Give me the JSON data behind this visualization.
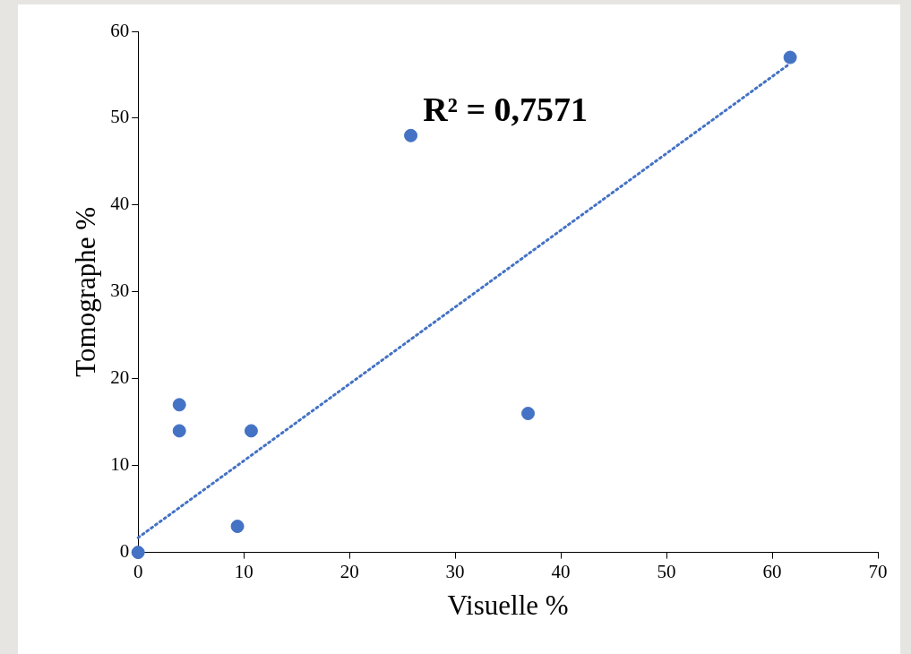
{
  "chart_data": {
    "type": "scatter",
    "xlabel": "Visuelle %",
    "ylabel": "Tomographe %",
    "x": [
      0,
      3.9,
      3.9,
      10.7,
      9.4,
      25.8,
      36.9,
      61.7
    ],
    "series": [
      {
        "type": "scatter",
        "color": "#4472c4",
        "values": [
          0,
          17,
          14,
          14,
          3,
          48,
          16,
          57
        ],
        "marker": "circle"
      },
      {
        "type": "line",
        "color": "#4472c4",
        "x": [
          0,
          61.7
        ],
        "values": [
          1.7,
          56.3
        ],
        "line_style": "dotted",
        "marker": "none"
      }
    ],
    "xlim": [
      0,
      70
    ],
    "xticks": [
      0,
      10,
      20,
      30,
      40,
      50,
      60,
      70
    ],
    "ylim": [
      0,
      60
    ],
    "yticks": [
      0,
      10,
      20,
      30,
      40,
      50,
      60
    ],
    "annotations": [
      "R² = 0,7571"
    ],
    "grid": false,
    "legend": false
  }
}
